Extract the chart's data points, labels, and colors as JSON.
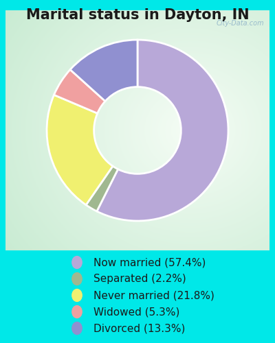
{
  "title": "Marital status in Dayton, IN",
  "slices": [
    {
      "label": "Now married (57.4%)",
      "value": 57.4,
      "color": "#b8a8d8"
    },
    {
      "label": "Separated (2.2%)",
      "value": 2.2,
      "color": "#a0b890"
    },
    {
      "label": "Never married (21.8%)",
      "value": 21.8,
      "color": "#f0f070"
    },
    {
      "label": "Widowed (5.3%)",
      "value": 5.3,
      "color": "#f0a0a0"
    },
    {
      "label": "Divorced (13.3%)",
      "value": 13.3,
      "color": "#9090d0"
    }
  ],
  "bg_outer": "#00e8e8",
  "watermark": "City-Data.com",
  "title_fontsize": 15,
  "legend_fontsize": 11,
  "start_angle": 90,
  "donut_width": 0.52
}
